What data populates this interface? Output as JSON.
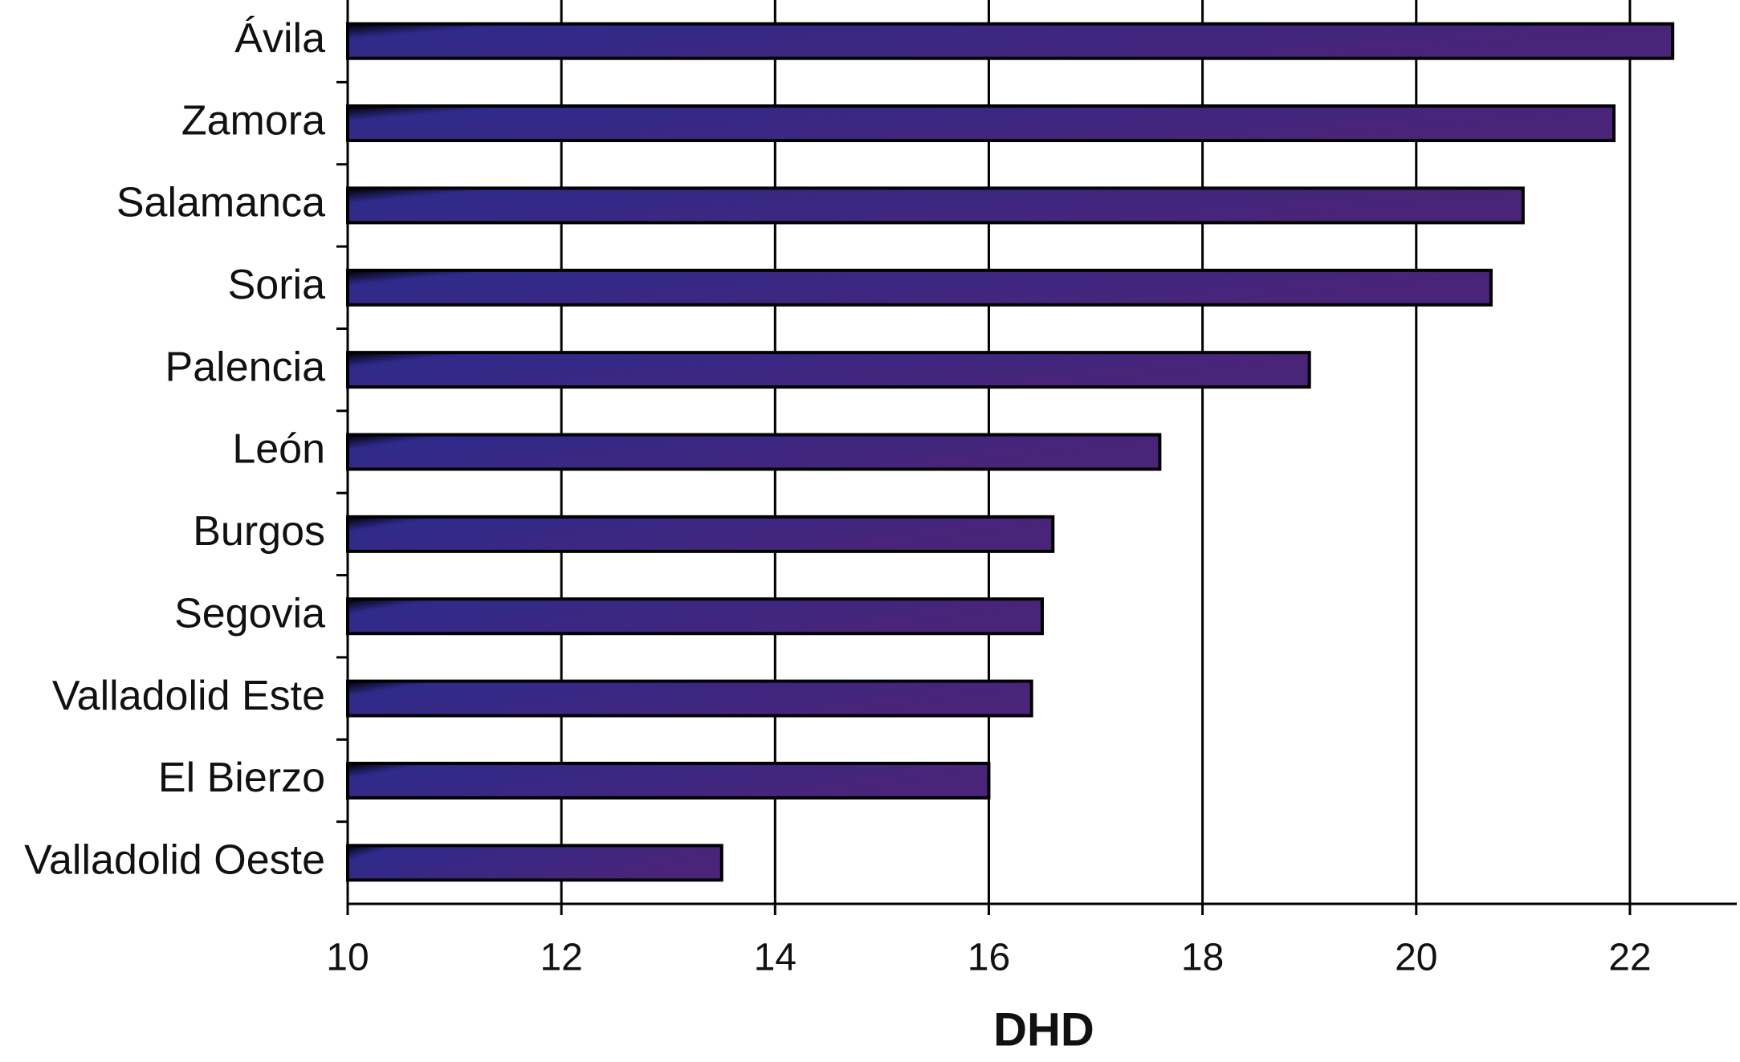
{
  "chart_data": {
    "type": "bar",
    "orientation": "horizontal",
    "x_label": "DHD",
    "categories": [
      "Ávila",
      "Zamora",
      "Salamanca",
      "Soria",
      "Palencia",
      "León",
      "Burgos",
      "Segovia",
      "Valladolid Este",
      "El Bierzo",
      "Valladolid Oeste"
    ],
    "values": [
      22.4,
      21.85,
      21.0,
      20.7,
      19.0,
      17.6,
      16.6,
      16.5,
      16.4,
      16.0,
      13.5
    ],
    "color": "#2f2a8a",
    "xlim": [
      10,
      23
    ],
    "xticks": [
      10,
      12,
      14,
      16,
      18,
      20,
      22
    ],
    "grid": true
  }
}
